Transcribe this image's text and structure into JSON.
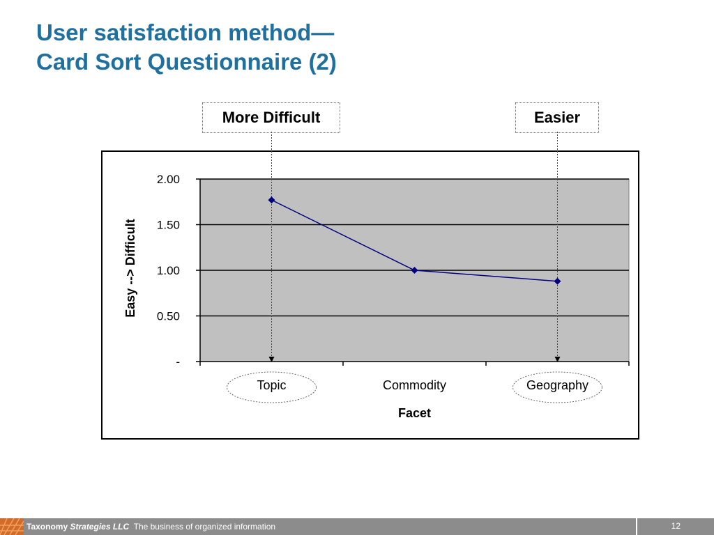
{
  "slide": {
    "title_line1": "User satisfaction method—",
    "title_line2": "Card Sort Questionnaire (2)"
  },
  "callouts": {
    "left": "More Difficult",
    "right": "Easier"
  },
  "chart_data": {
    "type": "line",
    "categories": [
      "Topic",
      "Commodity",
      "Geography"
    ],
    "series": [
      {
        "values": [
          1.77,
          1.0,
          0.88
        ],
        "color": "#000080"
      }
    ],
    "yticks": [
      "-",
      "0.50",
      "1.00",
      "1.50",
      "2.00"
    ],
    "ylim": [
      0,
      2
    ],
    "xlabel": "Facet",
    "ylabel_parts": [
      "Easy",
      "-->",
      "Difficult"
    ],
    "plot_background": "#C0C0C0",
    "grid": true
  },
  "footer": {
    "company": "Taxonomy",
    "company_italic": "Strategies LLC",
    "tagline": "The business of organized information",
    "page_number": "12"
  },
  "colors": {
    "title": "#1F6F9F",
    "footer_bg": "#8C8C8C",
    "logo": "#D26A2A"
  }
}
